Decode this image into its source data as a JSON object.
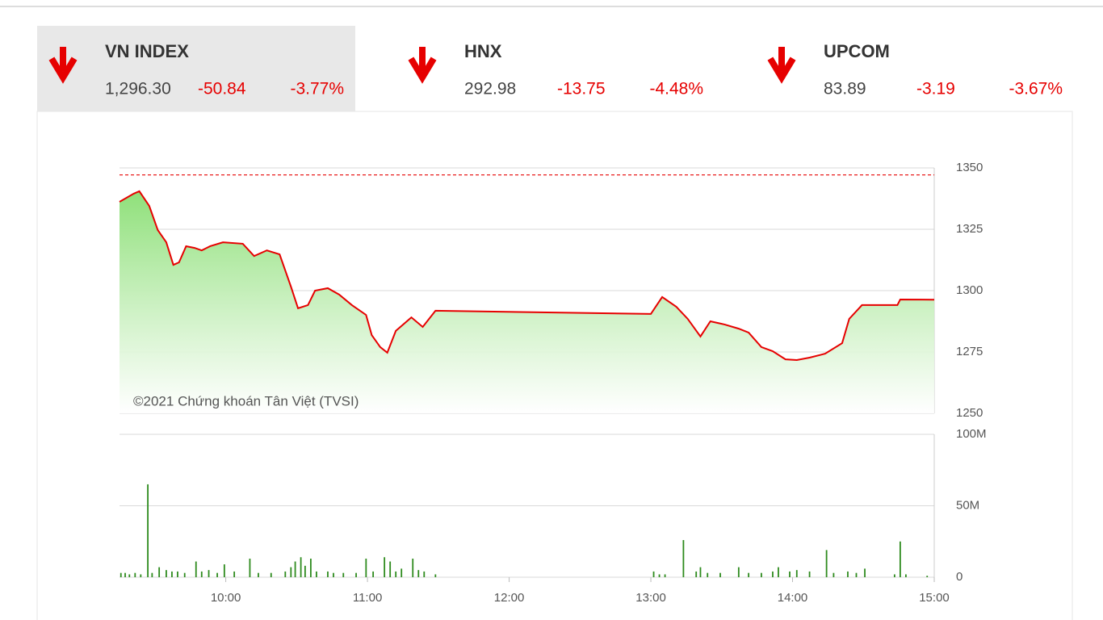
{
  "tiles": [
    {
      "name": "VN INDEX",
      "value": "1,296.30",
      "change": "-50.84",
      "percent": "-3.77%"
    },
    {
      "name": "HNX",
      "value": "292.98",
      "change": "-13.75",
      "percent": "-4.48%"
    },
    {
      "name": "UPCOM",
      "value": "83.89",
      "change": "-3.19",
      "percent": "-3.67%"
    }
  ],
  "chart_data": [
    {
      "type": "line",
      "annotation": "©2021 Chứng khoán Tân Việt (TVSI)",
      "xlim": [
        9.25,
        15
      ],
      "ylim": [
        1250,
        1350
      ],
      "yticks": [
        1250,
        1275,
        1300,
        1325,
        1350
      ],
      "grid": true,
      "reference_line": {
        "value": 1347.14,
        "color": "#e60000"
      },
      "series": [
        {
          "color": "#e60000",
          "x": [
            9.25,
            9.35,
            9.39,
            9.46,
            9.52,
            9.58,
            9.63,
            9.67,
            9.72,
            9.78,
            9.83,
            9.89,
            9.98,
            10.12,
            10.2,
            10.29,
            10.38,
            10.46,
            10.51,
            10.58,
            10.63,
            10.72,
            10.8,
            10.89,
            10.99,
            11.03,
            11.09,
            11.14,
            11.2,
            11.31,
            11.39,
            11.48,
            13.0,
            13.08,
            13.18,
            13.26,
            13.35,
            13.42,
            13.52,
            13.62,
            13.69,
            13.78,
            13.86,
            13.95,
            14.03,
            14.12,
            14.23,
            14.35,
            14.4,
            14.49,
            14.74,
            14.76,
            15.0
          ],
          "values": [
            1336.2,
            1339.5,
            1340.5,
            1334.5,
            1324.7,
            1319.7,
            1310.5,
            1311.5,
            1318.1,
            1317.4,
            1316.4,
            1318.1,
            1319.7,
            1319.1,
            1314.1,
            1316.4,
            1314.8,
            1301.6,
            1292.8,
            1294.1,
            1300,
            1301,
            1298.4,
            1294.1,
            1290.1,
            1281.9,
            1277,
            1274.7,
            1283.6,
            1289.1,
            1285.2,
            1291.8,
            1290.5,
            1297.4,
            1293.4,
            1288.5,
            1281.3,
            1287.5,
            1286.2,
            1284.5,
            1282.9,
            1277,
            1275.3,
            1272,
            1271.7,
            1272.7,
            1274.3,
            1278.6,
            1288.5,
            1294.1,
            1294.1,
            1296.4,
            1296.3
          ]
        }
      ]
    },
    {
      "type": "bar",
      "xlim": [
        9.25,
        15
      ],
      "xticks": [
        {
          "value": 10,
          "label": "10:00"
        },
        {
          "value": 11,
          "label": "11:00"
        },
        {
          "value": 12,
          "label": "12:00"
        },
        {
          "value": 13,
          "label": "13:00"
        },
        {
          "value": 14,
          "label": "14:00"
        },
        {
          "value": 15,
          "label": "15:00"
        }
      ],
      "ylim": [
        0,
        100000000
      ],
      "yticks": [
        0,
        {
          "value": 50000000,
          "label": "50M"
        },
        {
          "value": 100000000,
          "label": "100M"
        }
      ],
      "grid": true,
      "color": "#2e8b1e",
      "x": [
        9.26,
        9.29,
        9.32,
        9.36,
        9.4,
        9.45,
        9.48,
        9.53,
        9.58,
        9.62,
        9.66,
        9.71,
        9.79,
        9.83,
        9.88,
        9.94,
        9.99,
        10.06,
        10.17,
        10.23,
        10.32,
        10.42,
        10.46,
        10.49,
        10.53,
        10.56,
        10.6,
        10.64,
        10.72,
        10.76,
        10.83,
        10.92,
        10.99,
        11.04,
        11.12,
        11.16,
        11.2,
        11.24,
        11.32,
        11.36,
        11.4,
        11.48,
        13.02,
        13.06,
        13.1,
        13.23,
        13.32,
        13.35,
        13.4,
        13.49,
        13.62,
        13.69,
        13.78,
        13.86,
        13.9,
        13.98,
        14.03,
        14.12,
        14.24,
        14.29,
        14.39,
        14.45,
        14.51,
        14.72,
        14.76,
        14.8,
        14.95
      ],
      "values": [
        3000000,
        3000000,
        2000000,
        3000000,
        2000000,
        65000000,
        3000000,
        7000000,
        5000000,
        4000000,
        4000000,
        3000000,
        11000000,
        4000000,
        5000000,
        3000000,
        9000000,
        4000000,
        13000000,
        3000000,
        3000000,
        4000000,
        7000000,
        11000000,
        14000000,
        8000000,
        13000000,
        4000000,
        4000000,
        3000000,
        3000000,
        3000000,
        13000000,
        4000000,
        14000000,
        11000000,
        4000000,
        6000000,
        13000000,
        5000000,
        4000000,
        2000000,
        4000000,
        2000000,
        2000000,
        26000000,
        4000000,
        7000000,
        3000000,
        3000000,
        7000000,
        3000000,
        3000000,
        4000000,
        7000000,
        4000000,
        5000000,
        4000000,
        19000000,
        3000000,
        4000000,
        3000000,
        6000000,
        2000000,
        25000000,
        2000000,
        1000000
      ]
    }
  ]
}
